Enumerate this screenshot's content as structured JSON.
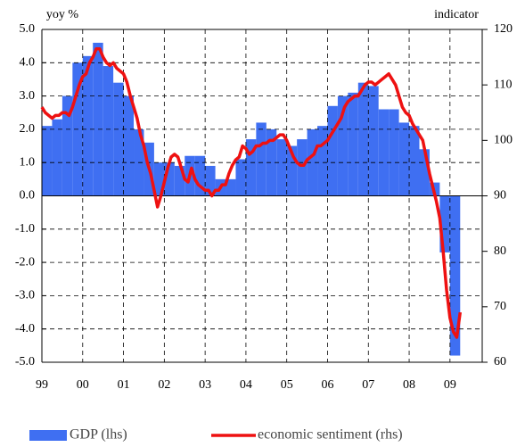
{
  "chart_data": {
    "type": "combo",
    "y_axis_label": "yoy %",
    "y2_axis_label": "indicator",
    "xlim": [
      1999,
      2009.79
    ],
    "xticks": [
      {
        "value": 1999,
        "label": "99"
      },
      {
        "value": 2000,
        "label": "00"
      },
      {
        "value": 2001,
        "label": "01"
      },
      {
        "value": 2002,
        "label": "02"
      },
      {
        "value": 2003,
        "label": "03"
      },
      {
        "value": 2004,
        "label": "04"
      },
      {
        "value": 2005,
        "label": "05"
      },
      {
        "value": 2006,
        "label": "06"
      },
      {
        "value": 2007,
        "label": "07"
      },
      {
        "value": 2008,
        "label": "08"
      },
      {
        "value": 2009,
        "label": "09"
      }
    ],
    "ylim": [
      -5,
      5
    ],
    "yticks": [
      {
        "value": 5,
        "label": "5.0"
      },
      {
        "value": 4,
        "label": "4.0"
      },
      {
        "value": 3,
        "label": "3.0"
      },
      {
        "value": 2,
        "label": "2.0"
      },
      {
        "value": 1,
        "label": "1.0"
      },
      {
        "value": 0,
        "label": "0.0"
      },
      {
        "value": -1,
        "label": "-1.0"
      },
      {
        "value": -2,
        "label": "-2.0"
      },
      {
        "value": -3,
        "label": "-3.0"
      },
      {
        "value": -4,
        "label": "-4.0"
      },
      {
        "value": -5,
        "label": "-5.0"
      }
    ],
    "y2lim": [
      60,
      120
    ],
    "y2ticks": [
      120,
      110,
      100,
      90,
      80,
      70,
      60
    ],
    "grid": true,
    "legend": "bottom",
    "series": [
      {
        "name": "GDP (lhs)",
        "type": "bar",
        "color": "#3f6ff2",
        "x": [
          1999,
          1999.25,
          1999.5,
          1999.75,
          2000,
          2000.25,
          2000.5,
          2000.75,
          2001,
          2001.25,
          2001.5,
          2001.75,
          2002,
          2002.25,
          2002.5,
          2002.75,
          2003,
          2003.25,
          2003.5,
          2003.75,
          2004,
          2004.25,
          2004.5,
          2004.75,
          2005,
          2005.25,
          2005.5,
          2005.75,
          2006,
          2006.25,
          2006.5,
          2006.75,
          2007,
          2007.25,
          2007.5,
          2007.75,
          2008,
          2008.25,
          2008.5,
          2008.75,
          2009
        ],
        "values": [
          2.1,
          2.3,
          3.0,
          4.0,
          4.2,
          4.6,
          3.9,
          3.4,
          3.0,
          2.0,
          1.6,
          1.0,
          1.0,
          0.9,
          1.2,
          1.2,
          0.9,
          0.5,
          0.5,
          1.1,
          1.7,
          2.2,
          2.0,
          1.7,
          1.5,
          1.7,
          2.0,
          2.1,
          2.7,
          3.0,
          3.1,
          3.4,
          3.3,
          2.6,
          2.6,
          2.2,
          2.1,
          1.4,
          0.4,
          -1.7,
          -4.8
        ]
      },
      {
        "name": "economic sentiment (rhs)",
        "type": "line",
        "axis": "y2",
        "color": "#ee1111",
        "x": [
          1999,
          1999.083,
          1999.167,
          1999.25,
          1999.333,
          1999.417,
          1999.5,
          1999.583,
          1999.667,
          1999.75,
          1999.833,
          1999.917,
          2000,
          2000.083,
          2000.167,
          2000.25,
          2000.333,
          2000.417,
          2000.5,
          2000.583,
          2000.667,
          2000.75,
          2000.833,
          2000.917,
          2001,
          2001.083,
          2001.167,
          2001.25,
          2001.333,
          2001.417,
          2001.5,
          2001.583,
          2001.667,
          2001.75,
          2001.833,
          2001.917,
          2002,
          2002.083,
          2002.167,
          2002.25,
          2002.333,
          2002.417,
          2002.5,
          2002.583,
          2002.667,
          2002.75,
          2002.833,
          2002.917,
          2003,
          2003.083,
          2003.167,
          2003.25,
          2003.333,
          2003.417,
          2003.5,
          2003.583,
          2003.667,
          2003.75,
          2003.833,
          2003.917,
          2004,
          2004.083,
          2004.167,
          2004.25,
          2004.333,
          2004.417,
          2004.5,
          2004.583,
          2004.667,
          2004.75,
          2004.833,
          2004.917,
          2005,
          2005.083,
          2005.167,
          2005.25,
          2005.333,
          2005.417,
          2005.5,
          2005.583,
          2005.667,
          2005.75,
          2005.833,
          2005.917,
          2006,
          2006.083,
          2006.167,
          2006.25,
          2006.333,
          2006.417,
          2006.5,
          2006.583,
          2006.667,
          2006.75,
          2006.833,
          2006.917,
          2007,
          2007.083,
          2007.167,
          2007.25,
          2007.333,
          2007.417,
          2007.5,
          2007.583,
          2007.667,
          2007.75,
          2007.833,
          2007.917,
          2008,
          2008.083,
          2008.167,
          2008.25,
          2008.333,
          2008.417,
          2008.5,
          2008.583,
          2008.667,
          2008.75,
          2008.833,
          2008.917,
          2009,
          2009.083,
          2009.167,
          2009.25
        ],
        "values": [
          106,
          105,
          104.5,
          104,
          104.5,
          104.5,
          105,
          105,
          104.5,
          106,
          108,
          110,
          111.5,
          112,
          114,
          115,
          116.5,
          116.5,
          115,
          114,
          113.5,
          114,
          113,
          112.5,
          112,
          110.5,
          108,
          106,
          104,
          101,
          99,
          96,
          94,
          91,
          88,
          90,
          92.5,
          95,
          97,
          97.5,
          97,
          95,
          93,
          92.5,
          95,
          93,
          92,
          91.5,
          91,
          91,
          90,
          91,
          91,
          92,
          92,
          94,
          95.5,
          96.5,
          97,
          99,
          98.5,
          97.5,
          98,
          99,
          99,
          99.5,
          99.5,
          100,
          100,
          100.5,
          101,
          101,
          100,
          98.5,
          97,
          96,
          95.5,
          95.5,
          96.5,
          97,
          97.5,
          99,
          99,
          99.5,
          100,
          101,
          102,
          103,
          104,
          106,
          107,
          107.5,
          108,
          108,
          109,
          110,
          110.5,
          110.5,
          110,
          110.5,
          111,
          111.5,
          112,
          111,
          110,
          108,
          106,
          105,
          104.5,
          103,
          102,
          101,
          100,
          97,
          94,
          91.5,
          89,
          86,
          80,
          73,
          68,
          65.5,
          64.5,
          69
        ]
      }
    ]
  }
}
